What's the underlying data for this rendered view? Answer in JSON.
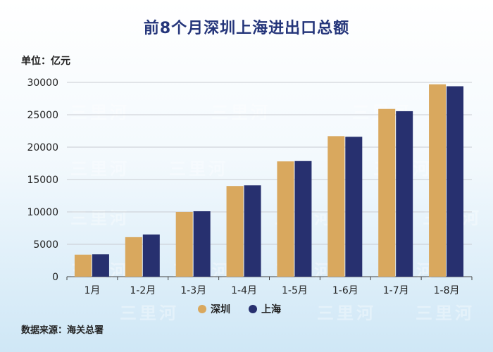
{
  "title": "前8个月深圳上海进出口总额",
  "unit_label": "单位：亿元",
  "source": "数据来源：海关总署",
  "watermark": "三里河",
  "colors": {
    "shenzhen": "#d9a85e",
    "shanghai": "#27306f",
    "title": "#24357a"
  },
  "chart_data": {
    "type": "bar",
    "title": "前8个月深圳上海进出口总额",
    "ylabel": "单位：亿元",
    "xlabel": "",
    "categories": [
      "1月",
      "1-2月",
      "1-3月",
      "1-4月",
      "1-5月",
      "1-6月",
      "1-7月",
      "1-8月"
    ],
    "series": [
      {
        "name": "深圳",
        "color": "#d9a85e",
        "values": [
          3400,
          6100,
          10000,
          14000,
          17800,
          21700,
          25900,
          29700
        ]
      },
      {
        "name": "上海",
        "color": "#27306f",
        "values": [
          3450,
          6500,
          10100,
          14100,
          17850,
          21600,
          25550,
          29400
        ]
      }
    ],
    "ylim": [
      0,
      30000
    ],
    "yticks": [
      0,
      5000,
      10000,
      15000,
      20000,
      25000,
      30000
    ],
    "grid": true,
    "legend_position": "bottom"
  }
}
